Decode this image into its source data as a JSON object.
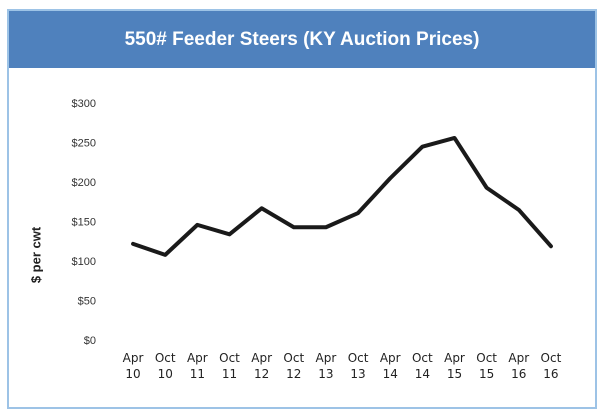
{
  "chart_data": {
    "type": "line",
    "title": "550# Feeder Steers (KY Auction Prices)",
    "y_label": "$ per cwt",
    "categories": [
      "Apr 10",
      "Oct 10",
      "Apr 11",
      "Oct 11",
      "Apr 12",
      "Oct 12",
      "Apr 13",
      "Oct 13",
      "Apr 14",
      "Oct 14",
      "Apr 15",
      "Oct 15",
      "Apr 16",
      "Oct 16"
    ],
    "values": [
      123,
      109,
      147,
      135,
      168,
      144,
      144,
      162,
      206,
      246,
      257,
      194,
      166,
      120
    ],
    "color": "#1a1a1a",
    "ylim": [
      0,
      300
    ],
    "yticks": [
      {
        "value": 0,
        "label": "$0"
      },
      {
        "value": 50,
        "label": "$50"
      },
      {
        "value": 100,
        "label": "$100"
      },
      {
        "value": 150,
        "label": "$150"
      },
      {
        "value": 200,
        "label": "$200"
      },
      {
        "value": 250,
        "label": "$250"
      },
      {
        "value": 300,
        "label": "$300"
      }
    ],
    "grid": false
  }
}
